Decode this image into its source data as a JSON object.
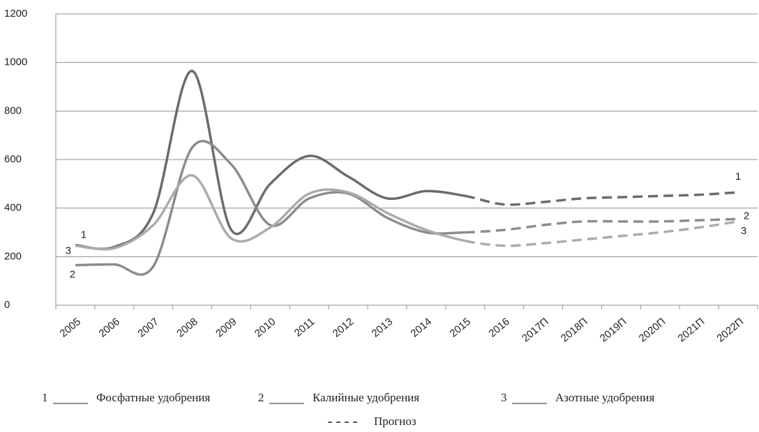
{
  "chart_data": {
    "type": "line",
    "categories": [
      "2005",
      "2006",
      "2007",
      "2008",
      "2009",
      "2010",
      "2011",
      "2012",
      "2013",
      "2014",
      "2015",
      "2016",
      "2017П",
      "2018П",
      "2019П",
      "2020П",
      "2021П",
      "2022П"
    ],
    "series": [
      {
        "name": "Фосфатные удобрения",
        "label": "1",
        "color": "#6b6b6b",
        "values": [
          248,
          240,
          380,
          965,
          310,
          500,
          615,
          530,
          440,
          470,
          450,
          415,
          425,
          440,
          445,
          450,
          455,
          465
        ]
      },
      {
        "name": "Калийные удобрения",
        "label": "2",
        "color": "#8c8c8c",
        "values": [
          165,
          168,
          160,
          650,
          580,
          330,
          440,
          460,
          360,
          300,
          300,
          310,
          330,
          345,
          345,
          345,
          350,
          355
        ]
      },
      {
        "name": "Азотные удобрения",
        "label": "3",
        "color": "#ababab",
        "values": [
          245,
          235,
          330,
          535,
          275,
          320,
          460,
          465,
          380,
          310,
          265,
          245,
          255,
          270,
          285,
          300,
          320,
          345
        ]
      }
    ],
    "forecast_from": "2015",
    "forecast_label": "Прогноз",
    "ylim": [
      0,
      1200
    ],
    "yticks": [
      0,
      200,
      400,
      600,
      800,
      1000,
      1200
    ],
    "grid": true
  }
}
